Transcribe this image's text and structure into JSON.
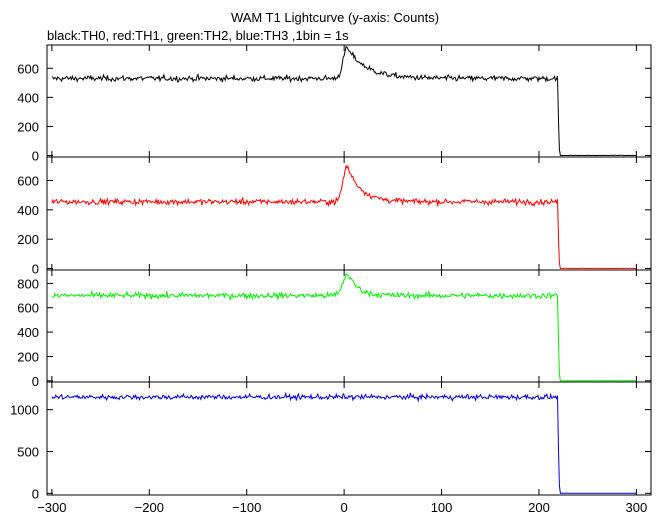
{
  "chart_data": {
    "type": "line",
    "title": "WAM T1 Lightcurve (y-axis: Counts)",
    "subtitle": "black:TH0, red:TH1, green:TH2, blue:TH3 ,1bin = 1s",
    "xlim": [
      -305,
      315
    ],
    "x_ticks": [
      -300,
      -200,
      -100,
      0,
      100,
      200,
      300
    ],
    "bin_seconds": 1,
    "panels": [
      {
        "name": "TH0",
        "color": "#000000",
        "ylim": [
          -10,
          760
        ],
        "y_ticks": [
          0,
          200,
          400,
          600
        ],
        "baseline": 530,
        "noise": 25,
        "peak": {
          "x": 3,
          "value": 740,
          "rise_s": 4,
          "decay_s": 20
        },
        "cutoff_x": 220,
        "after_cutoff": 0
      },
      {
        "name": "TH1",
        "color": "#ff0000",
        "ylim": [
          -10,
          760
        ],
        "y_ticks": [
          0,
          200,
          400,
          600
        ],
        "baseline": 455,
        "noise": 25,
        "peak": {
          "x": 3,
          "value": 700,
          "rise_s": 4,
          "decay_s": 14
        },
        "cutoff_x": 220,
        "after_cutoff": 0
      },
      {
        "name": "TH2",
        "color": "#00ee00",
        "ylim": [
          -10,
          910
        ],
        "y_ticks": [
          0,
          200,
          400,
          600,
          800
        ],
        "baseline": 700,
        "noise": 30,
        "peak": {
          "x": 4,
          "value": 880,
          "rise_s": 5,
          "decay_s": 10
        },
        "cutoff_x": 220,
        "after_cutoff": 0
      },
      {
        "name": "TH3",
        "color": "#0000ee",
        "ylim": [
          -20,
          1330
        ],
        "y_ticks": [
          0,
          500,
          1000
        ],
        "baseline": 1150,
        "noise": 40,
        "peak": null,
        "cutoff_x": 220,
        "after_cutoff": 0
      }
    ]
  }
}
